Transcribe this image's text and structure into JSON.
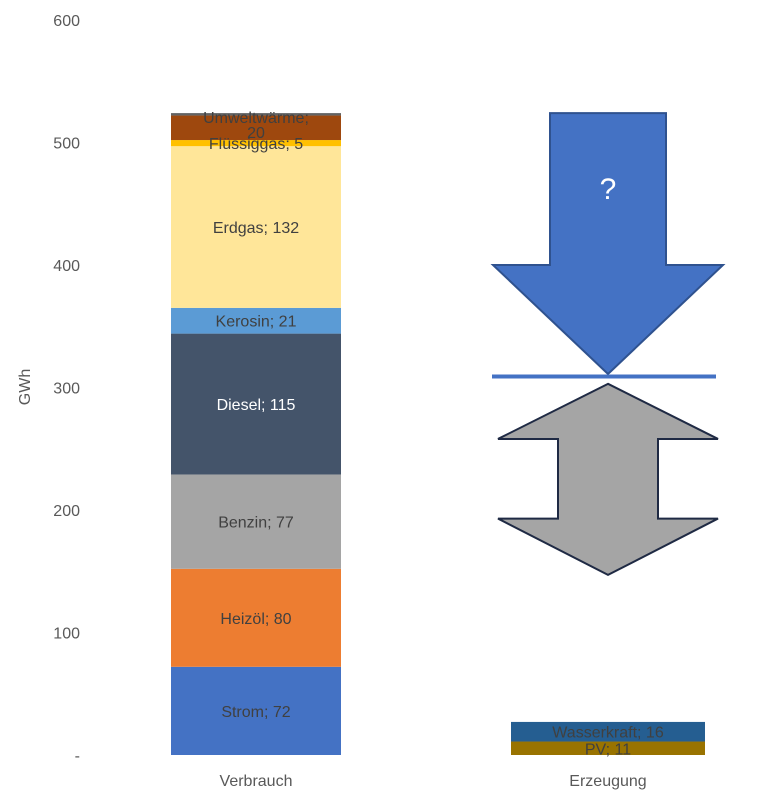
{
  "chart_data": {
    "type": "bar",
    "stacked": true,
    "ylabel": "GWh",
    "ylim": [
      0,
      600
    ],
    "yticks": [
      {
        "value": 0,
        "label": "-"
      },
      {
        "value": 100,
        "label": "100"
      },
      {
        "value": 200,
        "label": "200"
      },
      {
        "value": 300,
        "label": "300"
      },
      {
        "value": 400,
        "label": "400"
      },
      {
        "value": 500,
        "label": "500"
      },
      {
        "value": 600,
        "label": "600"
      }
    ],
    "grid": false,
    "legend": "none",
    "categories": [
      "Verbrauch",
      "Erzeugung"
    ],
    "bars": [
      {
        "category": "Verbrauch",
        "segments": [
          {
            "name": "Strom",
            "value": 72,
            "label": "Strom;  72",
            "color": "#4472C4",
            "text_color": "#404040"
          },
          {
            "name": "Heizöl",
            "value": 80,
            "label": "Heizöl;  80",
            "color": "#ED7D31",
            "text_color": "#404040"
          },
          {
            "name": "Benzin",
            "value": 77,
            "label": "Benzin;  77",
            "color": "#A5A5A5",
            "text_color": "#404040"
          },
          {
            "name": "Diesel",
            "value": 115,
            "label": "Diesel;  115",
            "color": "#44546A",
            "text_color": "#ffffff"
          },
          {
            "name": "Kerosin",
            "value": 21,
            "label": "Kerosin;  21",
            "color": "#5B9BD5",
            "text_color": "#404040"
          },
          {
            "name": "Erdgas",
            "value": 132,
            "label": "Erdgas;  132",
            "color": "#FFE699",
            "text_color": "#404040"
          },
          {
            "name": "Flüssiggas",
            "value": 5,
            "label": "Flüssiggas;  5",
            "color": "#FFC000",
            "text_color": "#404040"
          },
          {
            "name": "Umweltwärme",
            "value": 20,
            "label": "Umweltwärme;  20",
            "label_lines": [
              "Umweltwärme;",
              "20"
            ],
            "color": "#9E480E",
            "text_color": "#404040"
          },
          {
            "name": "top",
            "value": 2,
            "label": "",
            "color": "#636363",
            "text_color": "#404040"
          }
        ]
      },
      {
        "category": "Erzeugung",
        "segments": [
          {
            "name": "PV",
            "value": 11,
            "label": "PV;  11",
            "color": "#997300",
            "text_color": "#404040"
          },
          {
            "name": "Wasserkraft",
            "value": 16,
            "label": "Wasserkraft;  16",
            "color": "#255E91",
            "text_color": "#404040"
          }
        ]
      }
    ],
    "annotations": {
      "question_mark": "?",
      "down_arrow": {
        "from": 524,
        "to": 311,
        "color": "#4472C4"
      },
      "target_line": {
        "value": 309,
        "color": "#4472C4"
      },
      "double_arrow": {
        "from": 303,
        "to": 147,
        "color": "#A5A5A5"
      }
    }
  }
}
